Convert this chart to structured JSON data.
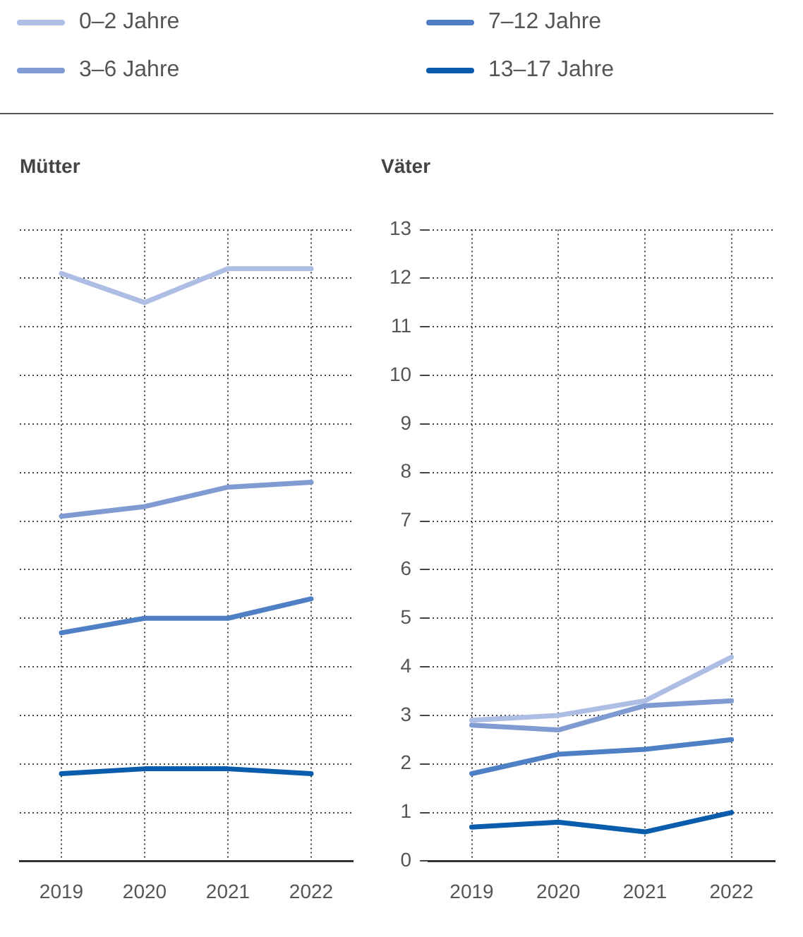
{
  "chart_data": [
    {
      "type": "line",
      "title": "Mütter",
      "categories": [
        "2019",
        "2020",
        "2021",
        "2022"
      ],
      "ylim": [
        0,
        13
      ],
      "yticks": [
        0,
        1,
        2,
        3,
        4,
        5,
        6,
        7,
        8,
        9,
        10,
        11,
        12,
        13
      ],
      "grid": true,
      "legend": "top",
      "tick_labels": "x",
      "marker": "none",
      "line_style": "solid",
      "series": [
        {
          "name": "0–2 Jahre",
          "color": "#aebde3",
          "values": [
            12.1,
            11.5,
            12.2,
            12.2
          ]
        },
        {
          "name": "3–6 Jahre",
          "color": "#7f9bd2",
          "values": [
            7.1,
            7.3,
            7.7,
            7.8
          ]
        },
        {
          "name": "7–12 Jahre",
          "color": "#4f7fc4",
          "values": [
            4.7,
            5.0,
            5.0,
            5.4
          ]
        },
        {
          "name": "13–17 Jahre",
          "color": "#0a5cad",
          "values": [
            1.8,
            1.9,
            1.9,
            1.8
          ]
        }
      ]
    },
    {
      "type": "line",
      "title": "Väter",
      "categories": [
        "2019",
        "2020",
        "2021",
        "2022"
      ],
      "ylim": [
        0,
        13
      ],
      "yticks": [
        0,
        1,
        2,
        3,
        4,
        5,
        6,
        7,
        8,
        9,
        10,
        11,
        12,
        13
      ],
      "grid": true,
      "marker": "none",
      "line_style": "solid",
      "series": [
        {
          "color": "#aebde3",
          "values": [
            2.9,
            3.0,
            3.3,
            4.2
          ]
        },
        {
          "color": "#7f9bd2",
          "values": [
            2.8,
            2.7,
            3.2,
            3.3
          ]
        },
        {
          "color": "#4f7fc4",
          "values": [
            1.8,
            2.2,
            2.3,
            2.5
          ]
        },
        {
          "color": "#0a5cad",
          "values": [
            0.7,
            0.8,
            0.6,
            1.0
          ]
        }
      ]
    }
  ]
}
